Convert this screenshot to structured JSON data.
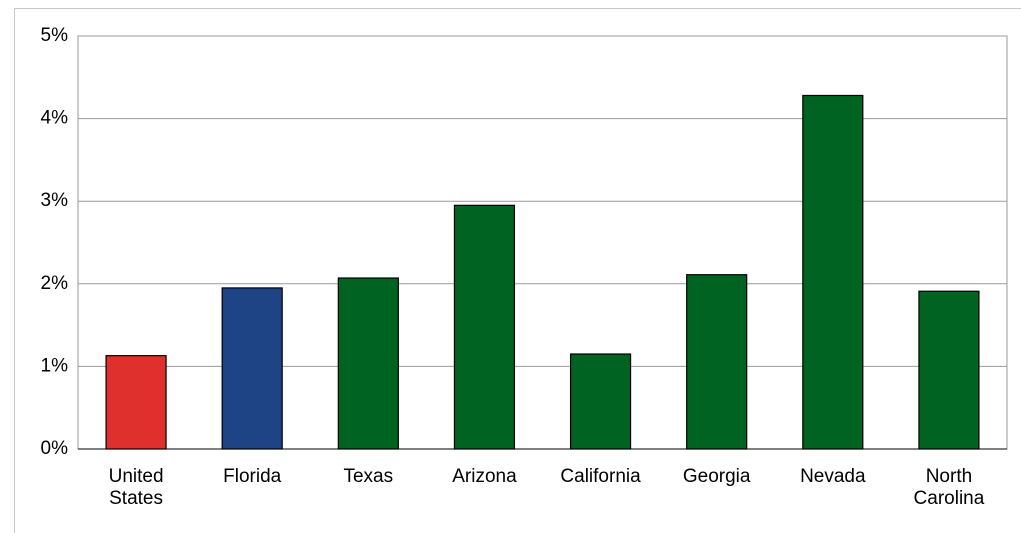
{
  "chart_data": {
    "type": "bar",
    "categories": [
      "United States",
      "Florida",
      "Texas",
      "Arizona",
      "California",
      "Georgia",
      "Nevada",
      "North Carolina"
    ],
    "values": [
      1.13,
      1.95,
      2.07,
      2.95,
      1.15,
      2.11,
      4.28,
      1.91
    ],
    "colors": [
      "#e0302d",
      "#1f4486",
      "#006321",
      "#006321",
      "#006321",
      "#006321",
      "#006321",
      "#006321"
    ],
    "ylim": [
      0,
      5
    ],
    "yticks": [
      {
        "value": 0,
        "label": "0%"
      },
      {
        "value": 1,
        "label": "1%"
      },
      {
        "value": 2,
        "label": "2%"
      },
      {
        "value": 3,
        "label": "3%"
      },
      {
        "value": 4,
        "label": "4%"
      },
      {
        "value": 5,
        "label": "5%"
      }
    ],
    "grid": true
  }
}
